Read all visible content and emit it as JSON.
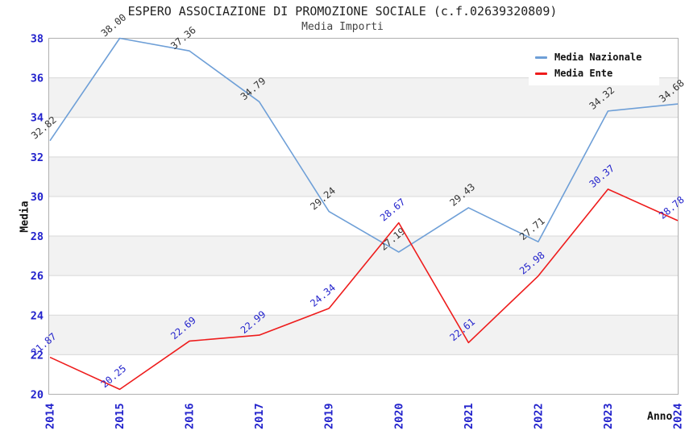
{
  "header": {
    "title": "ESPERO ASSOCIAZIONE DI PROMOZIONE SOCIALE (c.f.02639320809)",
    "subtitle": "Media Importi"
  },
  "chart_data": {
    "type": "line",
    "x": [
      "2014",
      "2015",
      "2016",
      "2017",
      "2019",
      "2020",
      "2021",
      "2022",
      "2023",
      "2024"
    ],
    "series": [
      {
        "name": "Media Nazionale",
        "color": "#6e9fd7",
        "label_color": "#333333",
        "values": [
          32.82,
          38.0,
          37.36,
          34.79,
          29.24,
          27.19,
          29.43,
          27.71,
          34.32,
          34.68
        ]
      },
      {
        "name": "Media Ente",
        "color": "#ee1c1c",
        "label_color": "#2323cc",
        "values": [
          21.87,
          20.25,
          22.69,
          22.99,
          24.34,
          28.67,
          22.61,
          25.98,
          30.37,
          28.78
        ]
      }
    ],
    "xlabel": "Anno",
    "ylabel": "Media",
    "ylim": [
      20,
      38
    ],
    "ytick_step": 2,
    "grid": true,
    "legend_position": "top-right",
    "tick_color": "#2222cc",
    "band_color": "#f2f2f2",
    "grid_color": "#d8d8d8",
    "border_color": "#b0b0b0",
    "value_label_rotation_deg": -40
  }
}
